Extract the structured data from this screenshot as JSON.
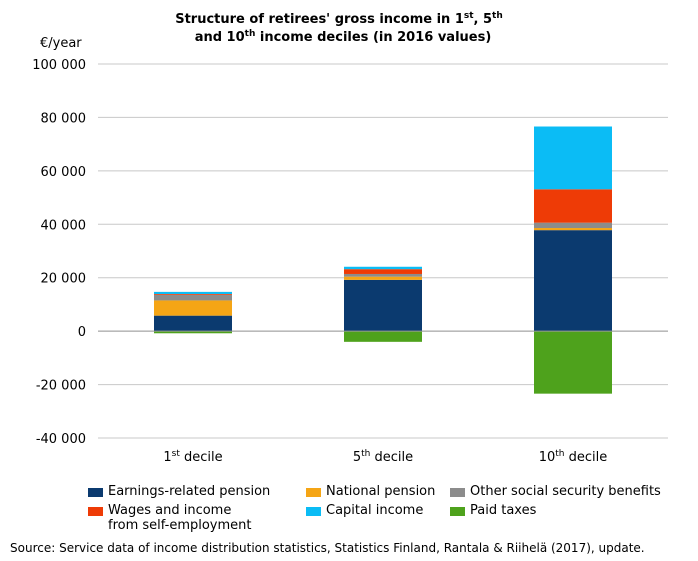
{
  "chart_data": {
    "type": "bar",
    "stacked": true,
    "title": {
      "line1_main": "Structure of retirees' gross income in 1",
      "line1_sup1": "st",
      "line1_mid": ", 5",
      "line1_sup2": "th",
      "line2_pre": "and 10",
      "line2_sup": "th",
      "line2_post": " income deciles (in 2016 values)"
    },
    "ylabel": "€/year",
    "ylim": [
      -40000,
      100000
    ],
    "yticks": [
      {
        "value": 100000,
        "label": "100 000"
      },
      {
        "value": 80000,
        "label": "80 000"
      },
      {
        "value": 60000,
        "label": "60 000"
      },
      {
        "value": 40000,
        "label": "40 000"
      },
      {
        "value": 20000,
        "label": "20 000"
      },
      {
        "value": 0,
        "label": "0"
      },
      {
        "value": -20000,
        "label": "-20 000"
      },
      {
        "value": -40000,
        "label": "-40 000"
      }
    ],
    "grid": true,
    "categories": [
      {
        "num": "1",
        "sup": "st",
        "rest": " decile"
      },
      {
        "num": "5",
        "sup": "th",
        "rest": " decile"
      },
      {
        "num": "10",
        "sup": "th",
        "rest": " decile"
      }
    ],
    "series": [
      {
        "name": "Earnings-related pension",
        "color": "#0b3a6f",
        "values": [
          5800,
          19200,
          37800
        ]
      },
      {
        "name": "National pension",
        "color": "#f5a515",
        "values": [
          5700,
          1200,
          800
        ]
      },
      {
        "name": "Other social security benefits",
        "color": "#8c8c8c",
        "values": [
          2100,
          1000,
          2000
        ]
      },
      {
        "name": "Wages and income from self-employment",
        "color": "#ee3b06",
        "values": [
          300,
          1800,
          12500
        ]
      },
      {
        "name": "Capital income",
        "color": "#0bbcf5",
        "values": [
          800,
          900,
          23500
        ]
      },
      {
        "name": "Paid taxes",
        "color": "#4ea21c",
        "values": [
          -800,
          -4000,
          -23400
        ]
      }
    ],
    "legend_placement": "bottom"
  },
  "legend": {
    "item1": "Earnings-related pension",
    "item2": "National pension",
    "item3": "Other social security benefits",
    "item4_line1": "Wages and income",
    "item4_line2": "from self-employment",
    "item5": "Capital income",
    "item6": "Paid taxes"
  },
  "source": "Source: Service data of income distribution statistics, Statistics Finland, Rantala & Riihelä (2017), update."
}
